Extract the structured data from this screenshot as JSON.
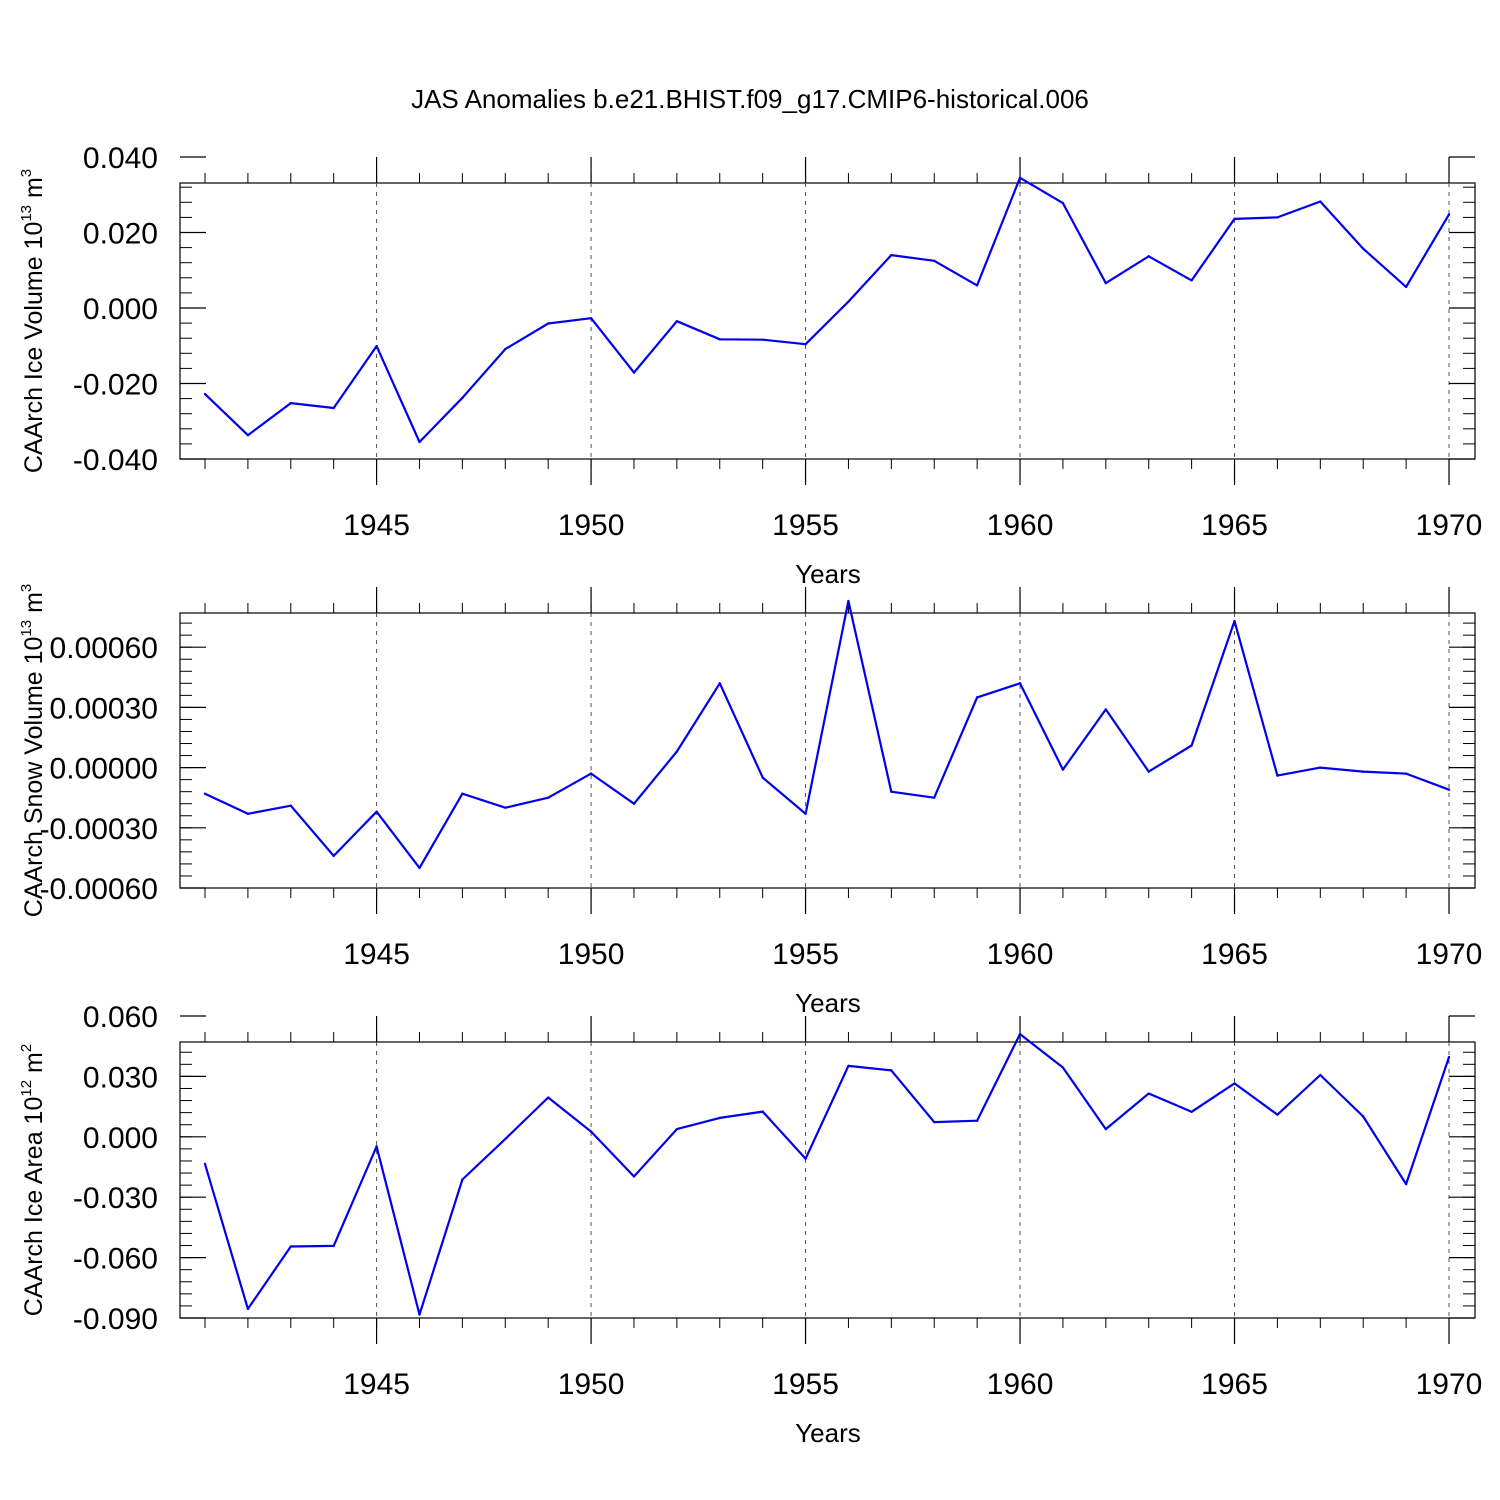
{
  "title": "JAS Anomalies b.e21.BHIST.f09_g17.CMIP6-historical.006",
  "colors": {
    "line": "#0000ee",
    "axis": "#000000",
    "grid": "#555555"
  },
  "chart_data": [
    {
      "type": "line",
      "name": "ice-volume",
      "ylabel_main": "CAArch Ice Volume 10",
      "ylabel_exp": "13",
      "ylabel_unit": " m",
      "ylabel_unit_exp": "3",
      "xlabel": "Years",
      "xlim": [
        1941,
        1970.6
      ],
      "xticks": [
        1945,
        1950,
        1955,
        1960,
        1965,
        1970
      ],
      "ylim": [
        -0.04,
        0.04
      ],
      "yticks": [
        -0.04,
        -0.02,
        0.0,
        0.02,
        0.04
      ],
      "ytick_labels": [
        "-0.040",
        "-0.020",
        "0.000",
        "0.020",
        "0.040"
      ],
      "x": [
        1941,
        1942,
        1943,
        1944,
        1945,
        1946,
        1947,
        1948,
        1949,
        1950,
        1951,
        1952,
        1953,
        1954,
        1955,
        1956,
        1957,
        1958,
        1959,
        1960,
        1961,
        1962,
        1963,
        1964,
        1965,
        1966,
        1967,
        1968,
        1969,
        1970
      ],
      "values": [
        -0.0228,
        -0.0337,
        -0.0252,
        -0.0265,
        -0.0101,
        -0.0355,
        -0.0238,
        -0.0109,
        -0.0041,
        -0.0027,
        -0.0171,
        -0.0035,
        -0.0083,
        -0.0084,
        -0.0096,
        0.0017,
        0.014,
        0.0125,
        0.006,
        0.0345,
        0.0278,
        0.0066,
        0.0137,
        0.0073,
        0.0236,
        0.024,
        0.0282,
        0.0157,
        0.0056,
        0.0248
      ]
    },
    {
      "type": "line",
      "name": "snow-volume",
      "ylabel_main": "CAArch Snow Volume 10",
      "ylabel_exp": "13",
      "ylabel_unit": " m",
      "ylabel_unit_exp": "3",
      "xlabel": "Years",
      "xlim": [
        1941,
        1970.6
      ],
      "xticks": [
        1945,
        1950,
        1955,
        1960,
        1965,
        1970
      ],
      "ylim": [
        -0.0006,
        0.0009
      ],
      "yticks": [
        -0.0006,
        -0.0003,
        0.0,
        0.0003,
        0.0006
      ],
      "ytick_labels": [
        "-0.00060",
        "-0.00030",
        "0.00000",
        "0.00030",
        "0.00060"
      ],
      "x": [
        1941,
        1942,
        1943,
        1944,
        1945,
        1946,
        1947,
        1948,
        1949,
        1950,
        1951,
        1952,
        1953,
        1954,
        1955,
        1956,
        1957,
        1958,
        1959,
        1960,
        1961,
        1962,
        1963,
        1964,
        1965,
        1966,
        1967,
        1968,
        1969,
        1970
      ],
      "values": [
        -0.00013,
        -0.00023,
        -0.00019,
        -0.00044,
        -0.00022,
        -0.0005,
        -0.00013,
        -0.0002,
        -0.00015,
        -3e-05,
        -0.00018,
        8e-05,
        0.00042,
        -5e-05,
        -0.00023,
        0.00083,
        -0.00012,
        -0.00015,
        0.00035,
        0.00042,
        -1e-05,
        0.00029,
        -2e-05,
        0.00011,
        0.00073,
        -4e-05,
        0.0,
        -2e-05,
        -3e-05,
        -0.00011
      ]
    },
    {
      "type": "line",
      "name": "ice-area",
      "ylabel_main": "CAArch Ice Area 10",
      "ylabel_exp": "12",
      "ylabel_unit": " m",
      "ylabel_unit_exp": "2",
      "xlabel": "Years",
      "xlim": [
        1941,
        1970.6
      ],
      "xticks": [
        1945,
        1950,
        1955,
        1960,
        1965,
        1970
      ],
      "ylim": [
        -0.09,
        0.06
      ],
      "yticks": [
        -0.09,
        -0.06,
        -0.03,
        0.0,
        0.03,
        0.06
      ],
      "ytick_labels": [
        "-0.090",
        "-0.060",
        "-0.030",
        "0.000",
        "0.030",
        "0.060"
      ],
      "x": [
        1941,
        1942,
        1943,
        1944,
        1945,
        1946,
        1947,
        1948,
        1949,
        1950,
        1951,
        1952,
        1953,
        1954,
        1955,
        1956,
        1957,
        1958,
        1959,
        1960,
        1961,
        1962,
        1963,
        1964,
        1965,
        1966,
        1967,
        1968,
        1969,
        1970
      ],
      "values": [
        -0.0135,
        -0.0855,
        -0.0545,
        -0.0542,
        -0.0048,
        -0.0883,
        -0.0212,
        -0.0011,
        0.0195,
        0.0026,
        -0.0197,
        0.0038,
        0.0094,
        0.0125,
        -0.0109,
        0.0352,
        0.033,
        0.0073,
        0.008,
        0.051,
        0.0344,
        0.0038,
        0.0215,
        0.0124,
        0.0265,
        0.011,
        0.0307,
        0.0101,
        -0.0235,
        0.0396
      ]
    }
  ]
}
